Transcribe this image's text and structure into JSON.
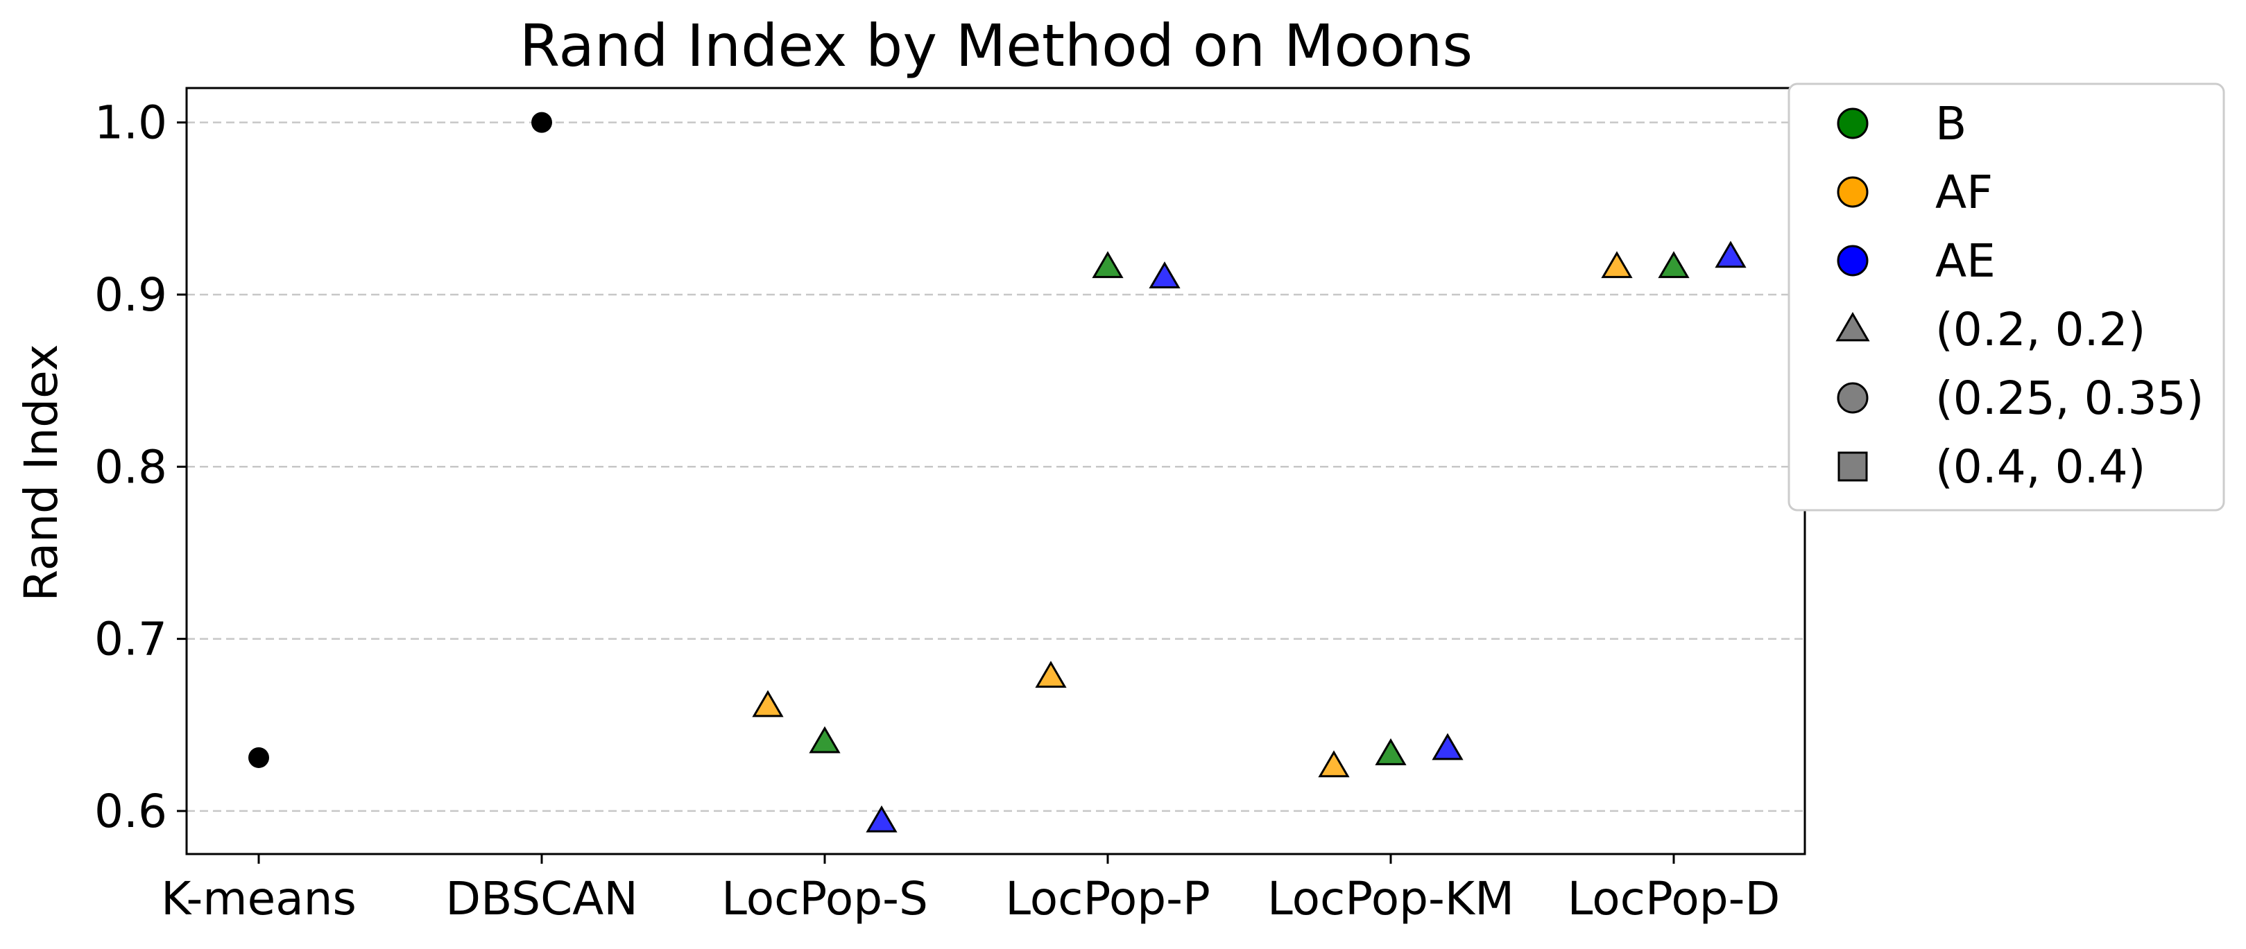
{
  "chart_data": {
    "type": "scatter",
    "title": "Rand Index by Method on Moons",
    "xlabel": "",
    "ylabel": "Rand Index",
    "categories": [
      "K-means",
      "DBSCAN",
      "LocPop-S",
      "LocPop-P",
      "LocPop-KM",
      "LocPop-D"
    ],
    "ylim": [
      0.575,
      1.02
    ],
    "yticks": [
      0.6,
      0.7,
      0.8,
      0.9,
      1.0
    ],
    "ytick_labels": [
      "0.6",
      "0.7",
      "0.8",
      "0.9",
      "1.0"
    ],
    "grid": "y-dashed",
    "legend_placement": "outside-upper-right",
    "legend": [
      {
        "label": "B",
        "marker": "circle",
        "color": "#008000"
      },
      {
        "label": "AF",
        "marker": "circle",
        "color": "#ffa500"
      },
      {
        "label": "AE",
        "marker": "circle",
        "color": "#0000ff"
      },
      {
        "label": "(0.2, 0.2)",
        "marker": "triangle",
        "color": "#808080"
      },
      {
        "label": "(0.25, 0.35)",
        "marker": "circle",
        "color": "#808080"
      },
      {
        "label": "(0.4, 0.4)",
        "marker": "square",
        "color": "#808080"
      }
    ],
    "baselines": [
      {
        "category": "K-means",
        "value": 0.631,
        "marker": "dot",
        "color": "#000000"
      },
      {
        "category": "DBSCAN",
        "value": 1.0,
        "marker": "dot",
        "color": "#000000"
      }
    ],
    "series": [
      {
        "name": "AF",
        "color": "#ffa500",
        "marker": "triangle",
        "points": [
          {
            "category": "LocPop-S",
            "value": 0.661
          },
          {
            "category": "LocPop-P",
            "value": 0.678
          },
          {
            "category": "LocPop-KM",
            "value": 0.626
          },
          {
            "category": "LocPop-D",
            "value": 0.916
          }
        ]
      },
      {
        "name": "B",
        "color": "#008000",
        "marker": "triangle",
        "points": [
          {
            "category": "LocPop-S",
            "value": 0.64
          },
          {
            "category": "LocPop-P",
            "value": 0.916
          },
          {
            "category": "LocPop-KM",
            "value": 0.633
          },
          {
            "category": "LocPop-D",
            "value": 0.916
          }
        ]
      },
      {
        "name": "AE",
        "color": "#0000ff",
        "marker": "triangle",
        "points": [
          {
            "category": "LocPop-S",
            "value": 0.594
          },
          {
            "category": "LocPop-P",
            "value": 0.91
          },
          {
            "category": "LocPop-KM",
            "value": 0.636
          },
          {
            "category": "LocPop-D",
            "value": 0.922
          }
        ]
      }
    ]
  }
}
